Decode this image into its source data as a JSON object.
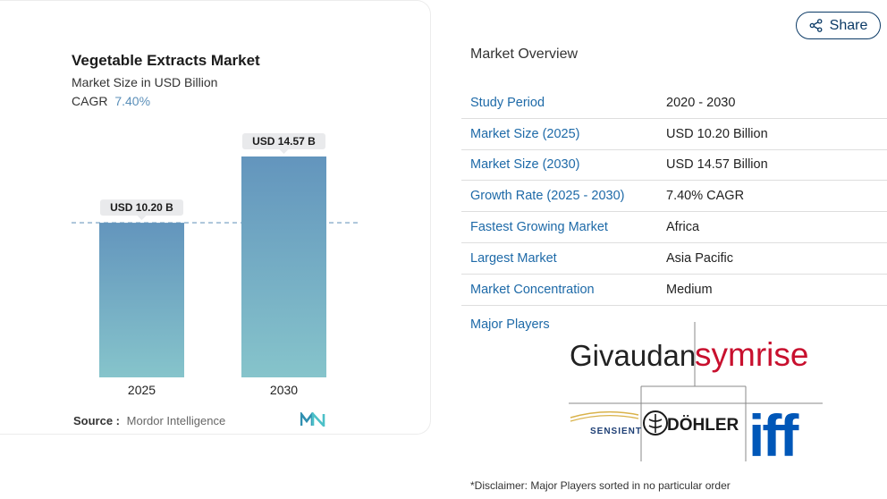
{
  "chart": {
    "title": "Vegetable Extracts Market",
    "subtitle": "Market Size in USD Billion",
    "cagr_label": "CAGR",
    "cagr_value": "7.40%",
    "source_label": "Source :",
    "source_value": "Mordor Intelligence",
    "bar_color_top": "#6395bd",
    "bar_color_bottom": "#86c4cb"
  },
  "chart_data": {
    "type": "bar",
    "categories": [
      "2025",
      "2030"
    ],
    "values": [
      10.2,
      14.57
    ],
    "data_labels": [
      "USD 10.20 B",
      "USD 14.57 B"
    ],
    "title": "Vegetable Extracts Market",
    "subtitle": "Market Size in USD Billion",
    "xlabel": "",
    "ylabel": "",
    "ylim": [
      0,
      14.57
    ],
    "grid": false,
    "reference_line": 10.2
  },
  "share": {
    "label": "Share"
  },
  "overview": {
    "title": "Market Overview",
    "rows": [
      {
        "label": "Study Period",
        "value": "2020 - 2030"
      },
      {
        "label": "Market Size (2025)",
        "value": "USD 10.20 Billion"
      },
      {
        "label": "Market Size (2030)",
        "value": "USD 14.57 Billion"
      },
      {
        "label": "Growth Rate (2025 - 2030)",
        "value": "7.40% CAGR"
      },
      {
        "label": "Fastest Growing Market",
        "value": "Africa"
      },
      {
        "label": "Largest Market",
        "value": "Asia Pacific"
      },
      {
        "label": "Market Concentration",
        "value": "Medium"
      }
    ]
  },
  "players": {
    "label": "Major Players",
    "logos": [
      {
        "name": "Givaudan",
        "color": "#222222"
      },
      {
        "name": "symrise",
        "color": "#c8102e"
      },
      {
        "name": "SENSIENT",
        "color": "#1e3f75"
      },
      {
        "name": "DÖHLER",
        "color": "#1a1a1a"
      },
      {
        "name": "iff",
        "color": "#0057b8"
      }
    ]
  },
  "disclaimer": "*Disclaimer: Major Players sorted in no particular order"
}
